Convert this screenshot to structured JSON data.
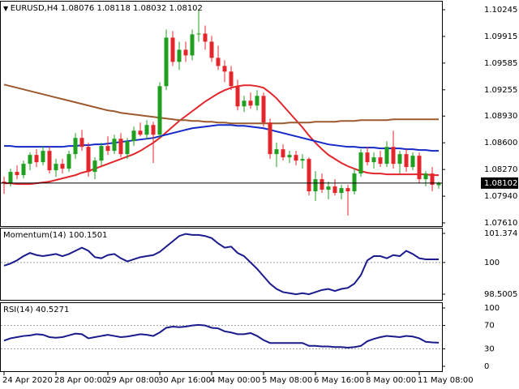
{
  "chart_data": [
    {
      "type": "candlestick",
      "title": "EURUSD,H4",
      "categories": [
        "24 Apr 2020",
        null,
        null,
        null,
        null,
        null,
        null,
        null,
        "28 Apr 00:00",
        null,
        null,
        null,
        null,
        null,
        null,
        null,
        "29 Apr 08:00",
        null,
        null,
        null,
        null,
        null,
        null,
        null,
        "30 Apr 16:00",
        null,
        null,
        null,
        null,
        null,
        null,
        null,
        "4 May 00:00",
        null,
        null,
        null,
        null,
        null,
        null,
        null,
        "5 May 08:00",
        null,
        null,
        null,
        null,
        null,
        null,
        null,
        "6 May 16:00",
        null,
        null,
        null,
        null,
        null,
        null,
        null,
        "8 May 00:00",
        null,
        null,
        null,
        null,
        null,
        null,
        null,
        "11 May 08:00",
        null,
        null,
        null
      ],
      "open": [
        1.0812,
        1.081,
        1.0824,
        1.082,
        1.0834,
        1.0845,
        1.0836,
        1.085,
        1.0826,
        1.0834,
        1.0828,
        1.0846,
        1.0866,
        1.0855,
        1.0824,
        1.0838,
        1.0856,
        1.085,
        1.0865,
        1.0846,
        1.0862,
        1.0875,
        1.087,
        1.0882,
        1.087,
        1.093,
        1.099,
        1.096,
        1.0975,
        1.0968,
        1.0994,
        1.0995,
        1.0985,
        1.0965,
        1.0955,
        1.0948,
        1.093,
        1.0905,
        1.0912,
        1.0906,
        1.0918,
        1.0885,
        1.0846,
        1.0852,
        1.0842,
        1.0845,
        1.0838,
        1.084,
        1.08,
        1.0815,
        1.0802,
        1.0806,
        1.0798,
        1.0804,
        1.08,
        1.0822,
        1.0848,
        1.0836,
        1.0842,
        1.0834,
        1.0855,
        1.0834,
        1.0846,
        1.083,
        1.0844,
        1.0815,
        1.0822,
        1.08076
      ],
      "high": [
        1.0818,
        1.0828,
        1.0832,
        1.0838,
        1.0848,
        1.0852,
        1.0856,
        1.0855,
        1.084,
        1.084,
        1.085,
        1.0872,
        1.0876,
        1.086,
        1.0842,
        1.086,
        1.0868,
        1.087,
        1.0872,
        1.0866,
        1.088,
        1.0885,
        1.0888,
        1.0886,
        1.0935,
        1.1,
        1.0998,
        1.0985,
        1.0985,
        1.1,
        1.1025,
        1.1005,
        1.0992,
        1.098,
        1.0962,
        1.0955,
        1.0938,
        1.0918,
        1.0922,
        1.0925,
        1.0922,
        1.089,
        1.086,
        1.0858,
        1.085,
        1.085,
        1.0846,
        1.0842,
        1.0825,
        1.0822,
        1.0812,
        1.0815,
        1.0808,
        1.0808,
        1.0828,
        1.0852,
        1.0855,
        1.0848,
        1.085,
        1.0862,
        1.0875,
        1.085,
        1.0852,
        1.0848,
        1.0848,
        1.0825,
        1.083,
        1.08118
      ],
      "low": [
        1.0797,
        1.0806,
        1.0815,
        1.0816,
        1.0826,
        1.083,
        1.0832,
        1.0822,
        1.0818,
        1.0822,
        1.0824,
        1.084,
        1.085,
        1.0818,
        1.0815,
        1.0832,
        1.0845,
        1.0846,
        1.0842,
        1.084,
        1.0856,
        1.0868,
        1.0864,
        1.0835,
        1.0866,
        1.0925,
        1.0955,
        1.095,
        1.096,
        1.0962,
        1.0985,
        1.0975,
        1.096,
        1.095,
        1.0935,
        1.0925,
        1.09,
        1.0898,
        1.0902,
        1.09,
        1.088,
        1.084,
        1.083,
        1.0838,
        1.0835,
        1.0832,
        1.0828,
        1.0795,
        1.0788,
        1.0798,
        1.079,
        1.0795,
        1.079,
        1.077,
        1.0796,
        1.0818,
        1.0832,
        1.0828,
        1.083,
        1.083,
        1.0828,
        1.0822,
        1.0824,
        1.0826,
        1.081,
        1.0806,
        1.08,
        1.08032
      ],
      "close": [
        1.081,
        1.0824,
        1.082,
        1.0834,
        1.0845,
        1.0836,
        1.085,
        1.0826,
        1.0834,
        1.0828,
        1.0846,
        1.0866,
        1.0855,
        1.0824,
        1.0838,
        1.0856,
        1.085,
        1.0865,
        1.0846,
        1.0862,
        1.0875,
        1.087,
        1.0882,
        1.087,
        1.093,
        1.099,
        1.096,
        1.0975,
        1.0968,
        1.0994,
        1.0995,
        1.0985,
        1.0965,
        1.0955,
        1.0948,
        1.093,
        1.0905,
        1.0912,
        1.0906,
        1.0918,
        1.0885,
        1.0846,
        1.0852,
        1.0842,
        1.0845,
        1.0838,
        1.084,
        1.08,
        1.0815,
        1.0802,
        1.0806,
        1.0798,
        1.0804,
        1.08,
        1.0822,
        1.0848,
        1.0836,
        1.0842,
        1.0834,
        1.0855,
        1.0834,
        1.0846,
        1.083,
        1.0844,
        1.0815,
        1.0822,
        1.0808,
        1.08102
      ],
      "up_color": "#1f9e1f",
      "down_color": "#e3262b",
      "series": [
        {
          "color": "#e3262b",
          "values": [
            1.081,
            1.081,
            1.0809,
            1.0809,
            1.0809,
            1.081,
            1.0811,
            1.0812,
            1.0814,
            1.0816,
            1.0818,
            1.082,
            1.0823,
            1.0825,
            1.0828,
            1.0831,
            1.0834,
            1.0837,
            1.084,
            1.0843,
            1.0846,
            1.085,
            1.0855,
            1.086,
            1.0866,
            1.0873,
            1.088,
            1.0887,
            1.0893,
            1.0899,
            1.0905,
            1.0911,
            1.0916,
            1.0921,
            1.0925,
            1.0928,
            1.093,
            1.0931,
            1.0931,
            1.093,
            1.0928,
            1.0922,
            1.0915,
            1.0906,
            1.0897,
            1.0888,
            1.0879,
            1.0869,
            1.086,
            1.0852,
            1.0845,
            1.084,
            1.0835,
            1.0831,
            1.0828,
            1.0825,
            1.0823,
            1.0822,
            1.0822,
            1.0821,
            1.0821,
            1.0821,
            1.0821,
            1.0821,
            1.0821,
            1.0821,
            1.082,
            1.082
          ]
        },
        {
          "color": "#1428c8",
          "values": [
            1.0856,
            1.0856,
            1.0855,
            1.0855,
            1.0855,
            1.0855,
            1.0855,
            1.0855,
            1.0855,
            1.0855,
            1.0856,
            1.0856,
            1.0857,
            1.0857,
            1.0858,
            1.0858,
            1.0859,
            1.086,
            1.0861,
            1.0862,
            1.0863,
            1.0864,
            1.0865,
            1.0866,
            1.0868,
            1.087,
            1.0872,
            1.0874,
            1.0876,
            1.0878,
            1.0879,
            1.088,
            1.0881,
            1.0882,
            1.0882,
            1.0882,
            1.0881,
            1.0881,
            1.088,
            1.0879,
            1.0878,
            1.0876,
            1.0874,
            1.0872,
            1.087,
            1.0868,
            1.0866,
            1.0864,
            1.0862,
            1.086,
            1.0858,
            1.0857,
            1.0856,
            1.0855,
            1.0855,
            1.0854,
            1.0854,
            1.0854,
            1.0853,
            1.0853,
            1.0853,
            1.0853,
            1.0852,
            1.0852,
            1.0851,
            1.0851,
            1.085,
            1.085
          ]
        },
        {
          "color": "#9c5a2e",
          "values": [
            1.0932,
            1.093,
            1.0928,
            1.0926,
            1.0924,
            1.0922,
            1.092,
            1.0918,
            1.0916,
            1.0914,
            1.0912,
            1.091,
            1.0908,
            1.0906,
            1.0904,
            1.0902,
            1.09,
            1.0899,
            1.0897,
            1.0896,
            1.0895,
            1.0894,
            1.0893,
            1.0892,
            1.0891,
            1.089,
            1.0889,
            1.0888,
            1.0888,
            1.0887,
            1.0887,
            1.0886,
            1.0886,
            1.0885,
            1.0885,
            1.0884,
            1.0884,
            1.0884,
            1.0884,
            1.0884,
            1.0884,
            1.0884,
            1.0884,
            1.0884,
            1.0885,
            1.0885,
            1.0885,
            1.0885,
            1.0886,
            1.0886,
            1.0886,
            1.0886,
            1.0887,
            1.0887,
            1.0887,
            1.0888,
            1.0888,
            1.0888,
            1.0888,
            1.0888,
            1.0889,
            1.0889,
            1.0889,
            1.0889,
            1.0889,
            1.0889,
            1.0889,
            1.0889
          ]
        }
      ],
      "ylim": [
        1.0757,
        1.10345
      ],
      "yticks": [
        1.10245,
        1.09915,
        1.09585,
        1.09255,
        {
          "value": 1.0893,
          "label": "1.08930"
        },
        {
          "value": 1.086,
          "label": "1.08600"
        },
        {
          "value": 1.0827,
          "label": "1.08270"
        },
        {
          "value": 1.0794,
          "label": "1.07940"
        },
        {
          "value": 1.0761,
          "label": "1.07610"
        }
      ]
    },
    {
      "type": "line",
      "title": "Momentum(14)",
      "color": "#1a1a8c",
      "values": [
        99.85,
        99.95,
        100.1,
        100.3,
        100.45,
        100.35,
        100.3,
        100.35,
        100.4,
        100.3,
        100.4,
        100.55,
        100.7,
        100.55,
        100.25,
        100.2,
        100.35,
        100.4,
        100.2,
        100.05,
        100.15,
        100.25,
        100.3,
        100.35,
        100.5,
        100.75,
        101.0,
        101.25,
        101.35,
        101.3,
        101.3,
        101.25,
        101.15,
        100.9,
        100.7,
        100.75,
        100.45,
        100.3,
        100.0,
        99.7,
        99.35,
        99.0,
        98.75,
        98.6,
        98.55,
        98.5,
        98.55,
        98.5,
        98.6,
        98.7,
        98.75,
        98.65,
        98.75,
        98.8,
        99.0,
        99.4,
        100.1,
        100.3,
        100.3,
        100.2,
        100.35,
        100.3,
        100.55,
        100.4,
        100.2,
        100.15,
        100.15,
        100.1501
      ],
      "ylim": [
        98.234,
        101.603
      ],
      "yticks": [
        101.374,
        100,
        98.5005
      ],
      "levels": [
        100
      ]
    },
    {
      "type": "line",
      "title": "RSI(14)",
      "color": "#1a1a8c",
      "values": [
        44,
        48,
        50,
        52,
        53,
        55,
        54,
        50,
        49,
        50,
        53,
        56,
        55,
        48,
        50,
        52,
        54,
        52,
        50,
        51,
        53,
        55,
        54,
        52,
        58,
        66,
        68,
        67,
        68,
        70,
        71,
        70,
        66,
        65,
        60,
        58,
        55,
        55,
        57,
        52,
        45,
        40,
        40,
        40,
        40,
        40,
        40,
        35,
        35,
        34,
        34,
        33,
        33,
        32,
        33,
        35,
        43,
        47,
        50,
        52,
        51,
        50,
        52,
        51,
        48,
        42,
        41,
        40.5271
      ],
      "ylim": [
        -8.3,
        108.3
      ],
      "yticks": [
        100,
        70,
        30,
        0
      ],
      "levels": [
        70,
        30
      ]
    }
  ]
}
